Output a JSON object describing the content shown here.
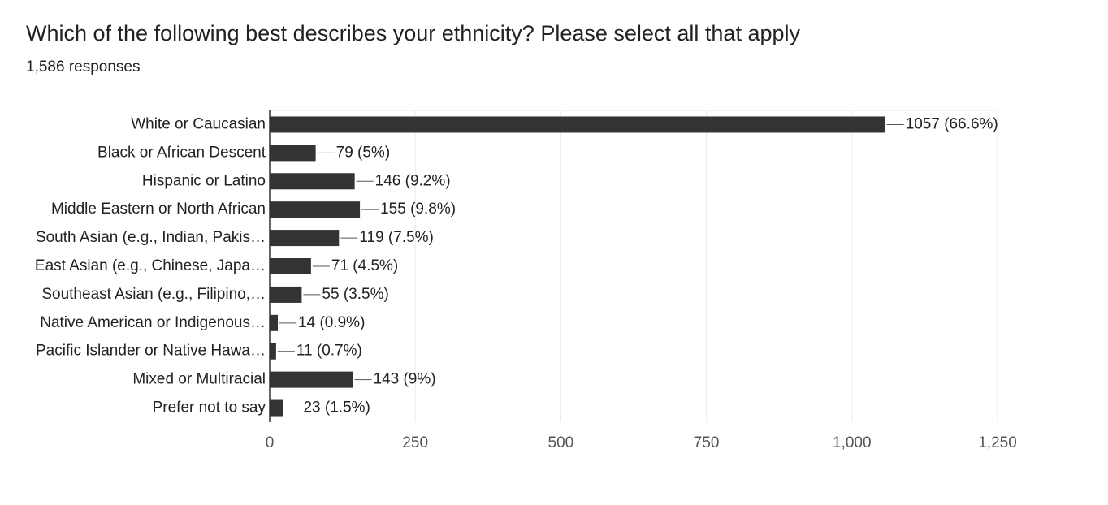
{
  "chart_data": {
    "type": "bar",
    "orientation": "horizontal",
    "title": "Which of the following best describes your ethnicity? Please select all that apply",
    "subtitle": "1,586 responses",
    "categories": [
      "White or Caucasian",
      "Black or African Descent",
      "Hispanic or Latino",
      "Middle Eastern or North African",
      "South Asian (e.g., Indian, Pakis…",
      "East Asian (e.g., Chinese, Japa…",
      "Southeast Asian (e.g., Filipino,…",
      "Native American or Indigenous…",
      "Pacific Islander or Native Hawa…",
      "Mixed or Multiracial",
      "Prefer not to say"
    ],
    "values": [
      1057,
      79,
      146,
      155,
      119,
      71,
      55,
      14,
      11,
      143,
      23
    ],
    "value_labels": [
      "1057 (66.6%)",
      "79 (5%)",
      "146 (9.2%)",
      "155 (9.8%)",
      "119 (7.5%)",
      "71 (4.5%)",
      "55 (3.5%)",
      "14 (0.9%)",
      "11 (0.7%)",
      "143 (9%)",
      "23 (1.5%)"
    ],
    "color": "#333333",
    "xlim": [
      0,
      1250
    ],
    "xticks": [
      0,
      250,
      500,
      750,
      {
        "value": 1000,
        "label": "1,000"
      },
      {
        "value": 1250,
        "label": "1,250"
      }
    ],
    "grid": true
  }
}
